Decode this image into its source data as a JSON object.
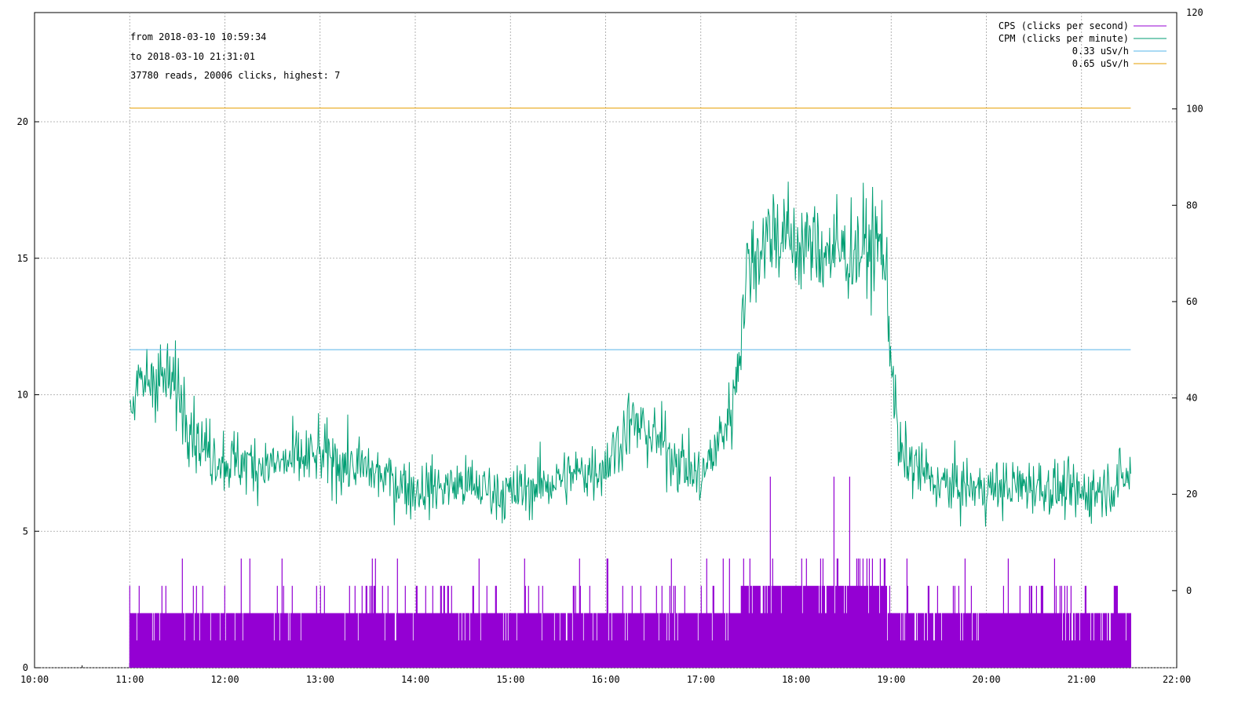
{
  "chart_data": {
    "type": "line",
    "info_lines": [
      "from 2018-03-10 10:59:34",
      "to   2018-03-10 21:31:01",
      "37780 reads, 20006 clicks, highest: 7"
    ],
    "x_axis": {
      "range_hours": [
        10,
        22
      ],
      "tick_labels": [
        "10:00",
        "11:00",
        "12:00",
        "13:00",
        "14:00",
        "15:00",
        "16:00",
        "17:00",
        "18:00",
        "19:00",
        "20:00",
        "21:00",
        "22:00"
      ]
    },
    "y_left": {
      "range": [
        0,
        24
      ],
      "tick_values": [
        0,
        5,
        10,
        15,
        20
      ],
      "tick_labels": [
        "0",
        "5",
        "10",
        "15",
        "20"
      ]
    },
    "y_right": {
      "range": [
        -16,
        120
      ],
      "tick_values": [
        0,
        20,
        40,
        60,
        80,
        100,
        120
      ],
      "tick_labels": [
        "0",
        "20",
        "40",
        "60",
        "80",
        "100",
        "120"
      ]
    },
    "grid": true,
    "legend_position": "top-right",
    "series": [
      {
        "name": "CPS (clicks per second)",
        "color": "#9400d3",
        "axis": "left",
        "description_ranges": [
          {
            "start": "11:00",
            "end": "15:00",
            "typical": 2,
            "peak": 4
          },
          {
            "start": "15:00",
            "end": "17:25",
            "typical": 2,
            "peak": 4
          },
          {
            "start": "17:25",
            "end": "18:57",
            "typical": 3,
            "peak": 7
          },
          {
            "start": "18:57",
            "end": "21:31",
            "typical": 2,
            "peak": 4
          }
        ]
      },
      {
        "name": "CPM (clicks per minute)",
        "color": "#009e73",
        "axis": "right",
        "profile": [
          {
            "t": "11:00",
            "v": 39
          },
          {
            "t": "11:15",
            "v": 45
          },
          {
            "t": "11:30",
            "v": 42
          },
          {
            "t": "11:45",
            "v": 30
          },
          {
            "t": "12:00",
            "v": 27
          },
          {
            "t": "12:30",
            "v": 26
          },
          {
            "t": "13:00",
            "v": 28
          },
          {
            "t": "13:30",
            "v": 25
          },
          {
            "t": "14:00",
            "v": 21
          },
          {
            "t": "14:30",
            "v": 22
          },
          {
            "t": "15:00",
            "v": 20
          },
          {
            "t": "15:30",
            "v": 23
          },
          {
            "t": "16:00",
            "v": 26
          },
          {
            "t": "16:15",
            "v": 35
          },
          {
            "t": "16:30",
            "v": 32
          },
          {
            "t": "17:00",
            "v": 23
          },
          {
            "t": "17:10",
            "v": 30
          },
          {
            "t": "17:20",
            "v": 38
          },
          {
            "t": "17:30",
            "v": 68
          },
          {
            "t": "17:45",
            "v": 75
          },
          {
            "t": "18:00",
            "v": 72
          },
          {
            "t": "18:30",
            "v": 70
          },
          {
            "t": "18:55",
            "v": 72
          },
          {
            "t": "19:05",
            "v": 28
          },
          {
            "t": "19:30",
            "v": 22
          },
          {
            "t": "20:00",
            "v": 21
          },
          {
            "t": "20:30",
            "v": 22
          },
          {
            "t": "21:00",
            "v": 20
          },
          {
            "t": "21:20",
            "v": 22
          },
          {
            "t": "21:31",
            "v": 24
          }
        ]
      },
      {
        "name": "0.33 uSv/h",
        "color": "#56b4e9",
        "axis": "left",
        "value": 11.65,
        "x_range": [
          "11:00",
          "21:31"
        ]
      },
      {
        "name": "0.65 uSv/h",
        "color": "#e69f00",
        "axis": "left",
        "value": 20.5,
        "x_range": [
          "11:00",
          "21:31"
        ]
      }
    ]
  }
}
